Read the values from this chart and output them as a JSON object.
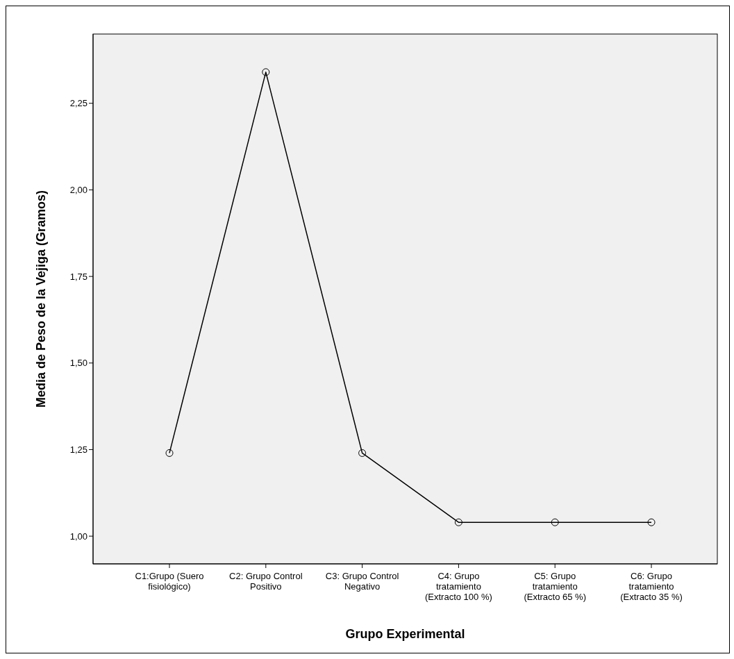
{
  "chart_data": {
    "type": "line",
    "xlabel": "Grupo Experimental",
    "ylabel": "Media de Peso de la Vejiga (Gramos)",
    "categories": [
      "C1:Grupo (Suero fisiológico)",
      "C2: Grupo Control Positivo",
      "C3: Grupo Control Negativo",
      "C4: Grupo tratamiento (Extracto 100 %)",
      "C5: Grupo tratamiento (Extracto 65 %)",
      "C6: Grupo tratamiento (Extracto 35 %)"
    ],
    "series": [
      {
        "color": "#000000",
        "values": [
          1.24,
          2.34,
          1.24,
          1.04,
          1.04,
          1.04
        ]
      }
    ],
    "ylim": [
      0.92,
      2.45
    ],
    "yticks": [
      {
        "value": 1.0,
        "label": "1,00"
      },
      {
        "value": 1.25,
        "label": "1,25"
      },
      {
        "value": 1.5,
        "label": "1,50"
      },
      {
        "value": 1.75,
        "label": "1,75"
      },
      {
        "value": 2.0,
        "label": "2,00"
      },
      {
        "value": 2.25,
        "label": "2,25"
      }
    ],
    "grid": false,
    "legend": false,
    "marker": "circle",
    "line_style": "solid"
  }
}
